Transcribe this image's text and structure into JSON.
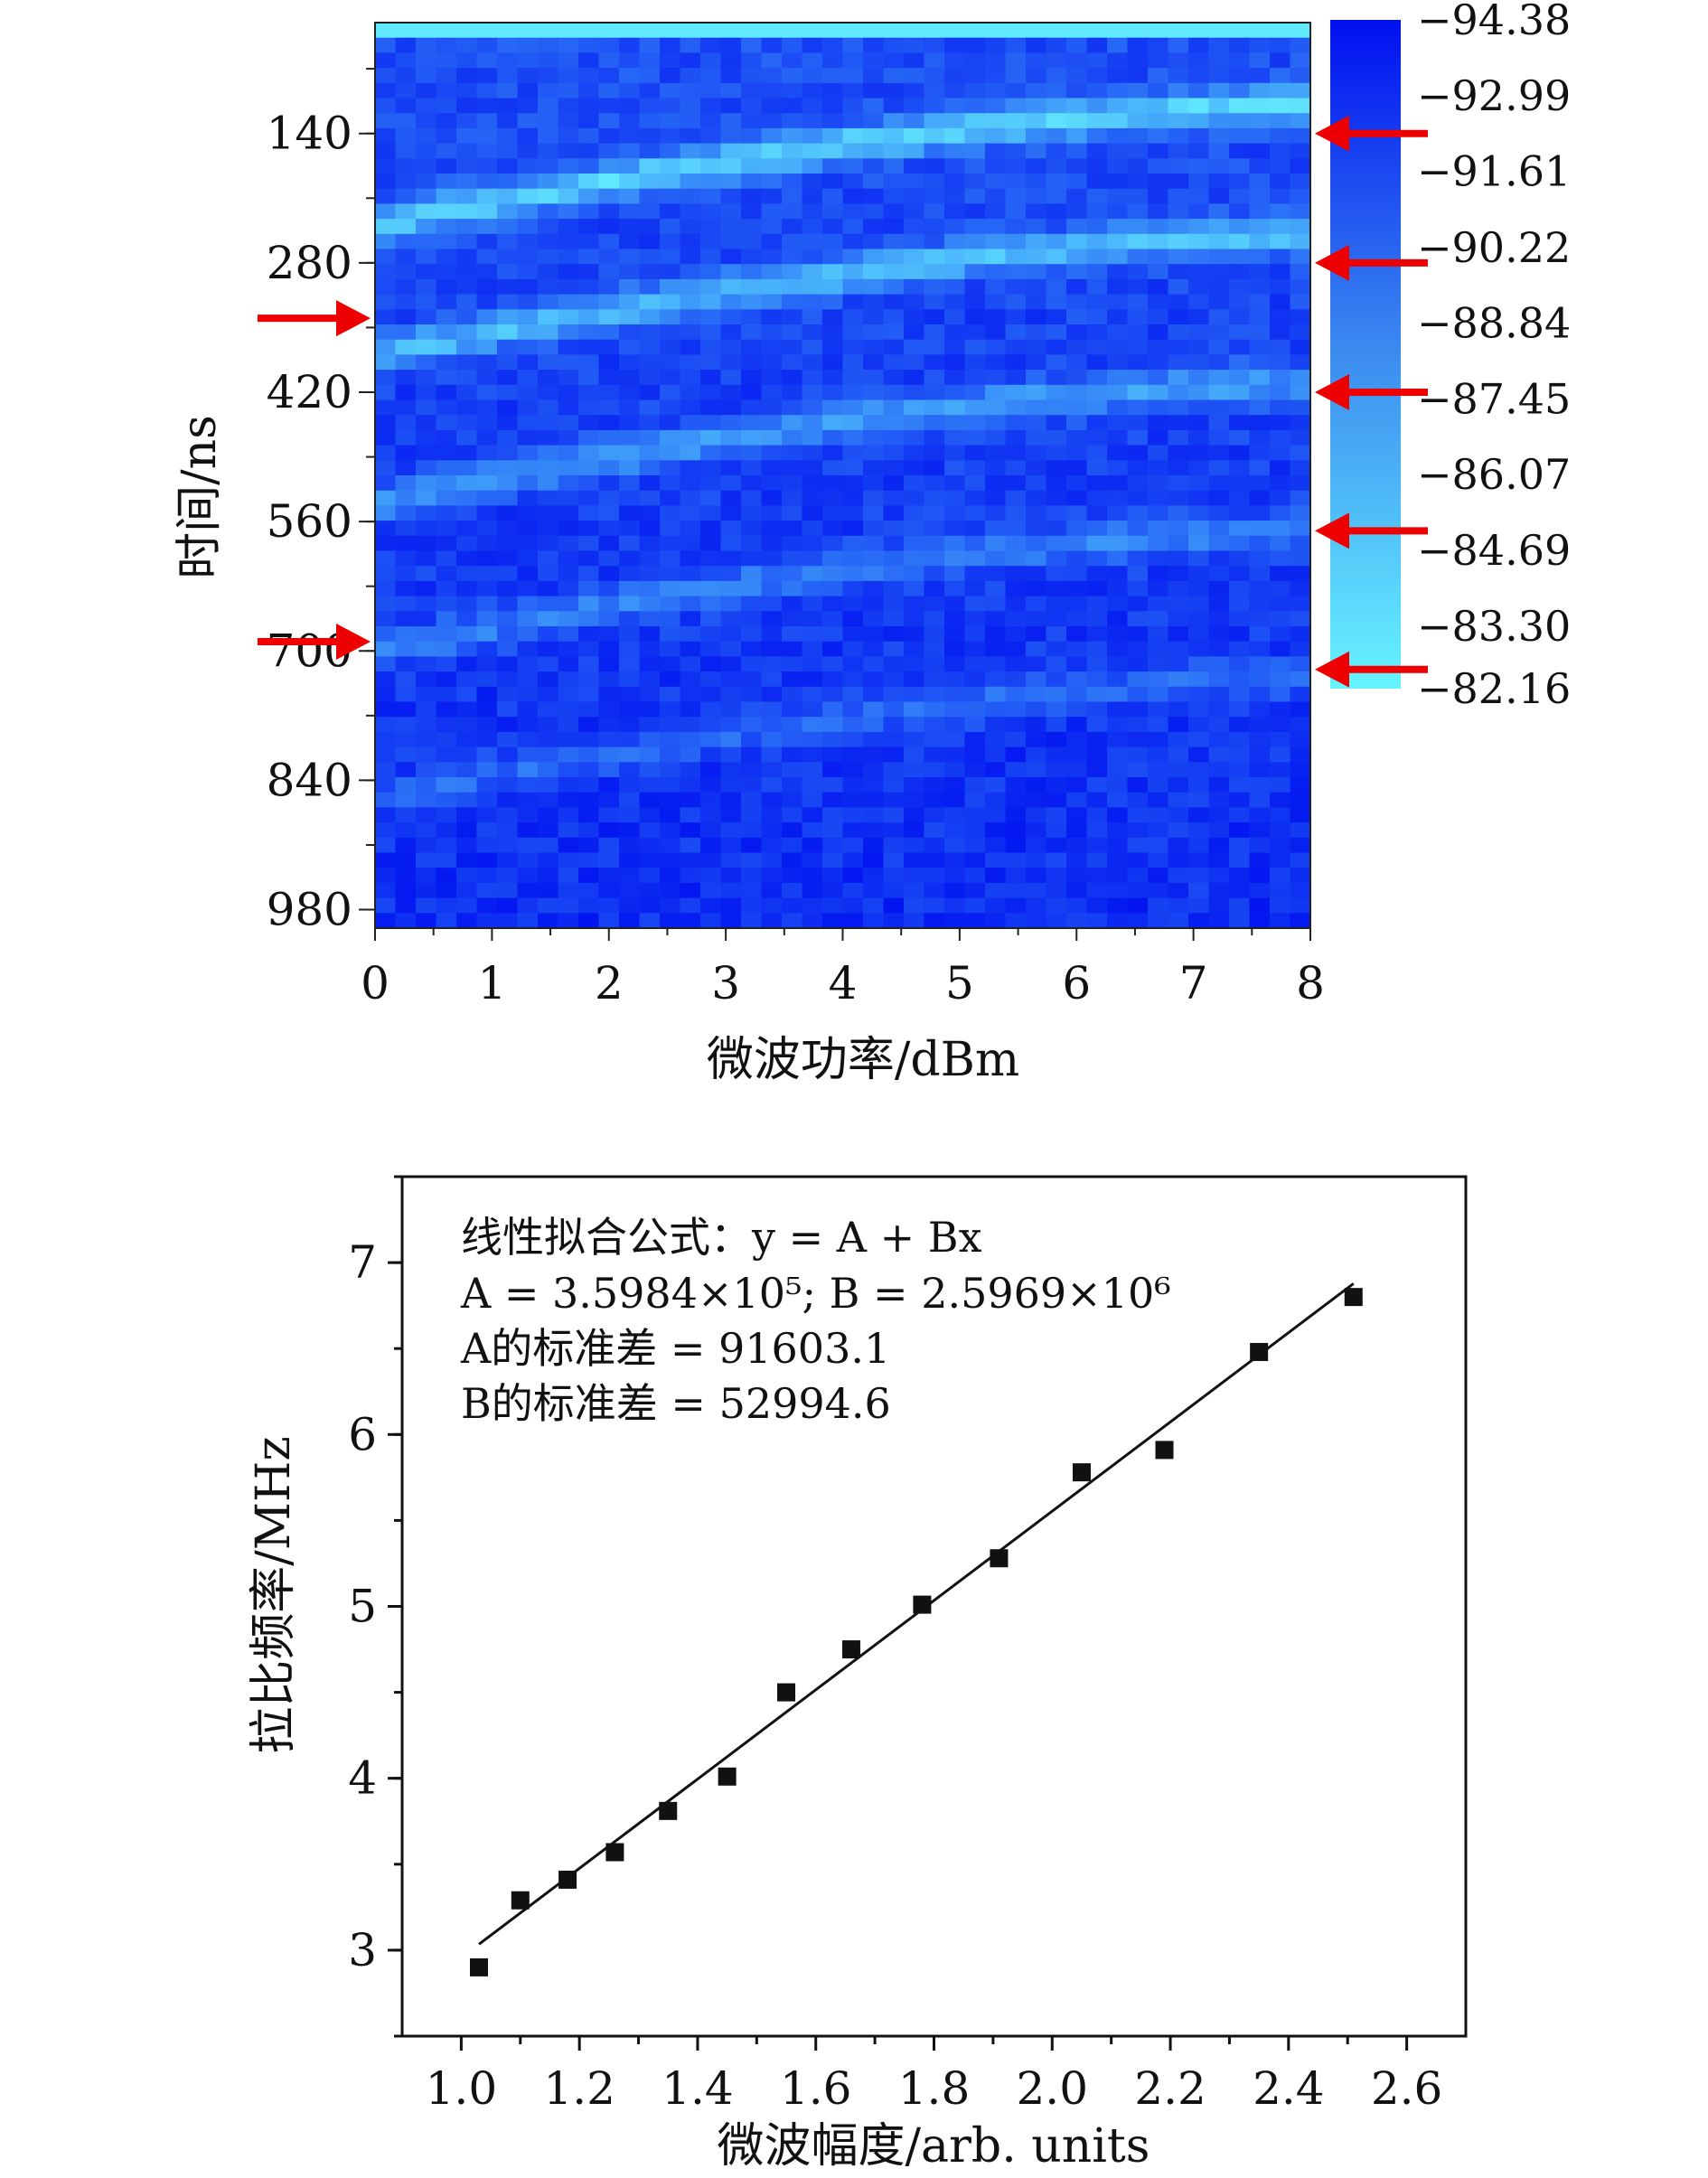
{
  "chart_data": [
    {
      "type": "heatmap",
      "xlabel": "微波功率/dBm",
      "ylabel": "时间/ns",
      "xlim": [
        0,
        8
      ],
      "ylim": [
        20,
        1000
      ],
      "x_ticks": [
        "0",
        "1",
        "2",
        "3",
        "4",
        "5",
        "6",
        "7",
        "8"
      ],
      "y_ticks": [
        "140",
        "280",
        "420",
        "560",
        "700",
        "840",
        "980"
      ],
      "y_tick_values": [
        140,
        280,
        420,
        560,
        700,
        840,
        980
      ],
      "colorbar": {
        "labels": [
          "−94.38",
          "−92.99",
          "−91.61",
          "−90.22",
          "−88.84",
          "−87.45",
          "−86.07",
          "−84.69",
          "−83.30",
          "−82.16"
        ],
        "values": [
          -94.38,
          -92.99,
          -91.61,
          -90.22,
          -88.84,
          -87.45,
          -86.07,
          -84.69,
          -83.3,
          -82.16
        ],
        "color_low": "#0010f0",
        "color_high": "#66f4ff"
      },
      "bands": [
        {
          "t_at_0": 240,
          "t_at_8": 110
        },
        {
          "t_at_0": 380,
          "t_at_8": 250
        },
        {
          "t_at_0": 540,
          "t_at_8": 410
        },
        {
          "t_at_0": 700,
          "t_at_8": 570
        },
        {
          "t_at_0": 860,
          "t_at_8": 730
        }
      ],
      "arrows_left_time": [
        340,
        690
      ],
      "arrows_right_time": [
        140,
        280,
        420,
        570,
        720
      ],
      "arrow_color": "#ee0000"
    },
    {
      "type": "scatter",
      "xlabel": "微波幅度/arb. units",
      "ylabel": "拉比频率/MHz",
      "xlim": [
        0.9,
        2.7
      ],
      "ylim": [
        2.5,
        7.5
      ],
      "x_ticks": [
        "1.0",
        "1.2",
        "1.4",
        "1.6",
        "1.8",
        "2.0",
        "2.2",
        "2.4",
        "2.6"
      ],
      "y_ticks": [
        "3",
        "4",
        "5",
        "6",
        "7"
      ],
      "points": [
        {
          "x": 1.03,
          "y": 2.9
        },
        {
          "x": 1.1,
          "y": 3.29
        },
        {
          "x": 1.18,
          "y": 3.41
        },
        {
          "x": 1.26,
          "y": 3.57
        },
        {
          "x": 1.35,
          "y": 3.81
        },
        {
          "x": 1.45,
          "y": 4.01
        },
        {
          "x": 1.55,
          "y": 4.5
        },
        {
          "x": 1.66,
          "y": 4.75
        },
        {
          "x": 1.78,
          "y": 5.01
        },
        {
          "x": 1.91,
          "y": 5.28
        },
        {
          "x": 2.05,
          "y": 5.78
        },
        {
          "x": 2.19,
          "y": 5.91
        },
        {
          "x": 2.35,
          "y": 6.48
        },
        {
          "x": 2.51,
          "y": 6.8
        }
      ],
      "fit": {
        "x_start": 1.03,
        "x_end": 2.51,
        "intercept_mhz": 0.35984,
        "slope_mhz": 2.5969
      },
      "annotation": {
        "line1": "线性拟合公式：y = A + Bx",
        "line2": "A = 3.5984×10⁵; B = 2.5969×10⁶",
        "line3": "A的标准差 = 91603.1",
        "line4": "B的标准差 = 52994.6"
      }
    }
  ]
}
